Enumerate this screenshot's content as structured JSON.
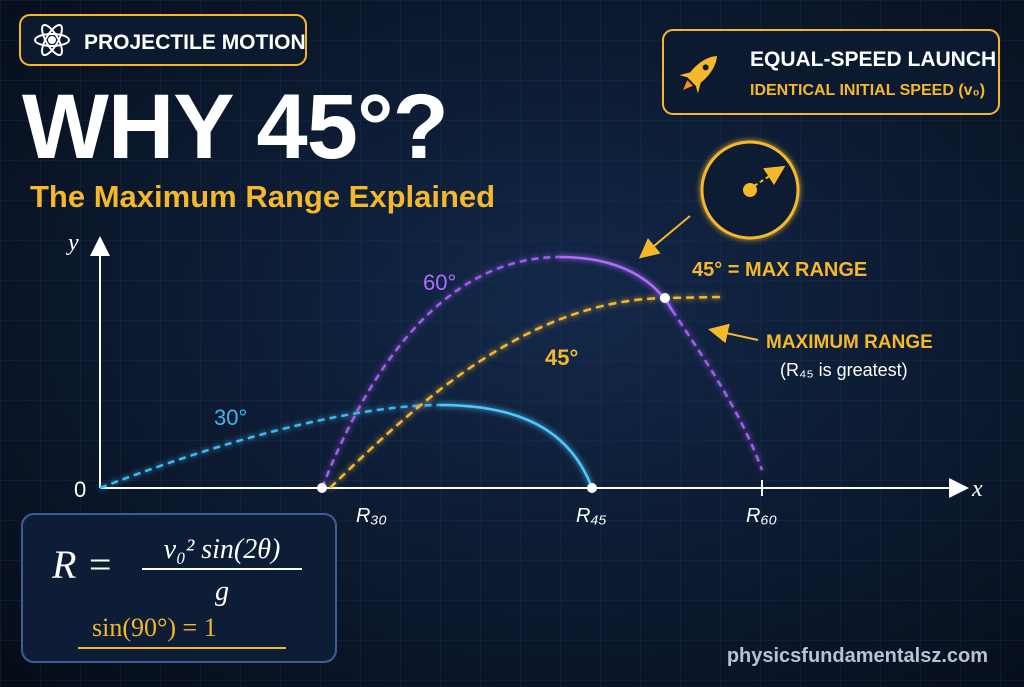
{
  "header": {
    "badge": "PROJECTILE MOTION",
    "title": "WHY 45°?",
    "subtitle": "The Maximum Range Explained"
  },
  "launch_box": {
    "title": "EQUAL-SPEED LAUNCH",
    "subtitle": "IDENTICAL INITIAL SPEED (v₀)"
  },
  "diagram": {
    "y_axis": "y",
    "x_axis": "x",
    "origin": "0",
    "curve_labels": [
      "30°",
      "45°",
      "60°"
    ],
    "range_labels": [
      "R₃₀",
      "R₄₅",
      "R₆₀"
    ],
    "max_callout": "45° = MAX RANGE",
    "note_title": "MAXIMUM RANGE",
    "note_text": "(R₄₅ is greatest)"
  },
  "formula": {
    "lhs": "R =",
    "numerator": "v₀² sin(2θ)",
    "denominator": "g",
    "identity": "sin(90°) = 1"
  },
  "footer": {
    "website": "physicsfundamentalsz.com"
  }
}
